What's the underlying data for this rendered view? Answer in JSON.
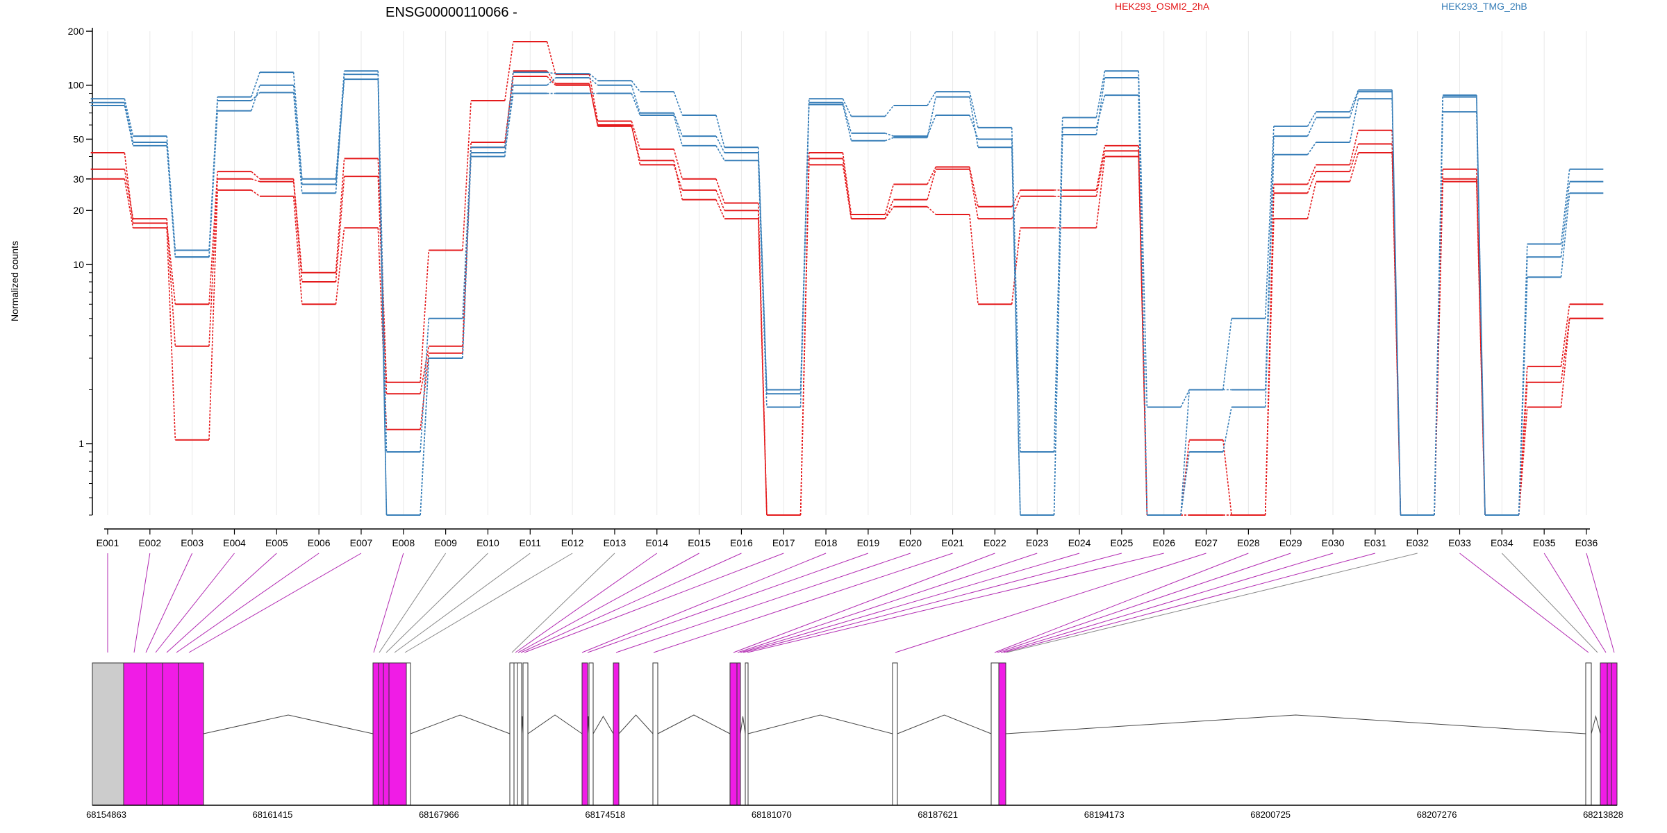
{
  "chart_data": {
    "type": "line",
    "title": "ENSG00000110066 -",
    "ylabel": "Normalized counts",
    "yscale": "log",
    "ylim": [
      0.4,
      200
    ],
    "yticks": [
      1,
      10,
      20,
      30,
      50,
      100,
      200
    ],
    "grid": true,
    "legend_placement": "top-right",
    "categories": [
      "E001",
      "E002",
      "E003",
      "E004",
      "E005",
      "E006",
      "E007",
      "E008",
      "E009",
      "E010",
      "E011",
      "E012",
      "E013",
      "E014",
      "E015",
      "E016",
      "E017",
      "E018",
      "E019",
      "E020",
      "E021",
      "E022",
      "E023",
      "E024",
      "E025",
      "E026",
      "E027",
      "E028",
      "E029",
      "E030",
      "E031",
      "E032",
      "E033",
      "E034",
      "E035",
      "E036"
    ],
    "legend": [
      {
        "label": "HEK293_OSMI2_2hA",
        "color": "#e41a1c"
      },
      {
        "label": "HEK293_TMG_2hB",
        "color": "#377eb8"
      }
    ],
    "series": [
      {
        "color": "#e41a1c",
        "values": [
          42,
          17,
          6,
          33,
          30,
          9,
          39,
          2.2,
          12,
          82,
          175,
          115,
          63,
          44,
          30,
          22,
          0.4,
          42,
          19,
          28,
          35,
          21,
          26,
          26,
          46,
          0.4,
          1.05,
          0.4,
          28,
          36,
          56,
          0.4,
          34,
          0.4,
          2.7,
          6
        ]
      },
      {
        "color": "#e41a1c",
        "values": [
          34,
          18,
          3.5,
          30,
          29,
          8,
          31,
          1.9,
          3.5,
          48,
          112,
          100,
          60,
          36,
          26,
          20,
          0.4,
          39,
          18,
          23,
          34,
          18,
          24,
          24,
          43,
          0.4,
          0.4,
          0.4,
          25,
          33,
          47,
          0.4,
          30,
          0.4,
          2.2,
          5
        ]
      },
      {
        "color": "#e41a1c",
        "values": [
          30,
          16,
          1.05,
          26,
          24,
          6,
          16,
          1.2,
          3.2,
          45,
          120,
          102,
          59,
          38,
          23,
          18,
          0.4,
          36,
          18,
          21,
          19,
          6,
          16,
          16,
          40,
          0.4,
          0.4,
          0.4,
          18,
          29,
          42,
          0.4,
          29,
          0.4,
          1.6,
          5
        ]
      },
      {
        "color": "#377eb8",
        "values": [
          84,
          52,
          12,
          86,
          118,
          30,
          120,
          0.9,
          5,
          45,
          118,
          116,
          106,
          92,
          68,
          45,
          2,
          84,
          67,
          77,
          92,
          58,
          0.9,
          66,
          120,
          1.6,
          2,
          5,
          59,
          71,
          94,
          0.4,
          88,
          0.4,
          13,
          34
        ]
      },
      {
        "color": "#377eb8",
        "values": [
          80,
          48,
          11,
          72,
          100,
          28,
          108,
          0.4,
          3,
          40,
          100,
          110,
          100,
          70,
          52,
          42,
          1.9,
          80,
          54,
          52,
          68,
          50,
          0.4,
          53,
          110,
          0.4,
          2,
          2,
          52,
          66,
          92,
          0.4,
          86,
          0.4,
          11,
          29
        ]
      },
      {
        "color": "#377eb8",
        "values": [
          77,
          46,
          11,
          82,
          91,
          25,
          115,
          0.4,
          3,
          42,
          90,
          90,
          90,
          68,
          46,
          38,
          1.6,
          78,
          49,
          51,
          86,
          45,
          0.4,
          58,
          88,
          0.4,
          0.9,
          1.6,
          41,
          48,
          84,
          0.4,
          71,
          0.4,
          8.5,
          25
        ]
      }
    ],
    "gene_model": {
      "coordinates": [
        "68154863",
        "68161415",
        "68167966",
        "68174518",
        "68181070",
        "68187621",
        "68194173",
        "68200725",
        "68207276",
        "68213828"
      ],
      "exon_colors": {
        "differential": "#f01ce6",
        "non_differential": "#ffffff",
        "constitutive_start": "#cccccc"
      }
    }
  }
}
